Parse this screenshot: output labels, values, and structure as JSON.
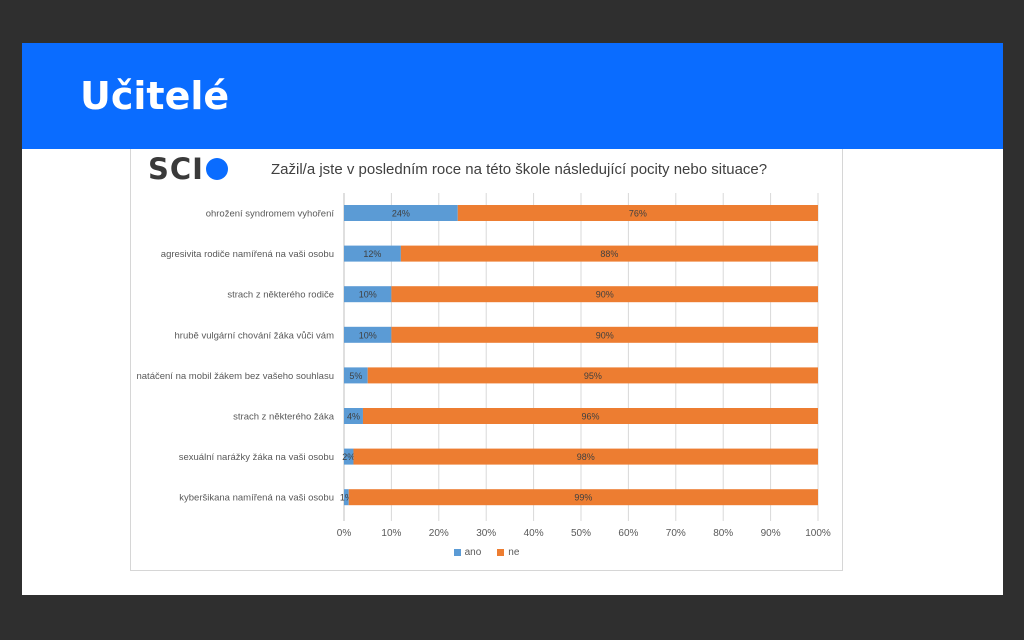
{
  "slide": {
    "title": "Učitelé"
  },
  "logo": {
    "text": "SCI",
    "icon": "circle-o-icon",
    "color": "#0a6cff"
  },
  "colors": {
    "banner": "#0a6cff",
    "ano": "#5b9bd5",
    "ne": "#ed7d31"
  },
  "chart_data": {
    "type": "bar",
    "orientation": "horizontal",
    "stacked": "percent",
    "title": "Zažil/a jste v posledním roce na této škole následující pocity nebo situace?",
    "categories": [
      "ohrožení syndromem vyhoření",
      "agresivita rodiče namířená na vaši osobu",
      "strach z některého rodiče",
      "hrubě vulgární chování žáka vůči vám",
      "natáčení na mobil žákem bez vašeho souhlasu",
      "strach z některého žáka",
      "sexuální narážky žáka na vaši osobu",
      "kyberšikana namířená na vaši osobu"
    ],
    "series": [
      {
        "name": "ano",
        "values": [
          24,
          12,
          10,
          10,
          5,
          4,
          2,
          1
        ],
        "labels": [
          "24%",
          "12%",
          "10%",
          "10%",
          "5%",
          "4%",
          "2%",
          "1%"
        ]
      },
      {
        "name": "ne",
        "values": [
          76,
          88,
          90,
          90,
          95,
          96,
          98,
          99
        ],
        "labels": [
          "76%",
          "88%",
          "90%",
          "90%",
          "95%",
          "96%",
          "98%",
          "99%"
        ]
      }
    ],
    "xlim": [
      0,
      100
    ],
    "xticks": [
      "0%",
      "10%",
      "20%",
      "30%",
      "40%",
      "50%",
      "60%",
      "70%",
      "80%",
      "90%",
      "100%"
    ],
    "grid": true,
    "legend": "bottom"
  }
}
